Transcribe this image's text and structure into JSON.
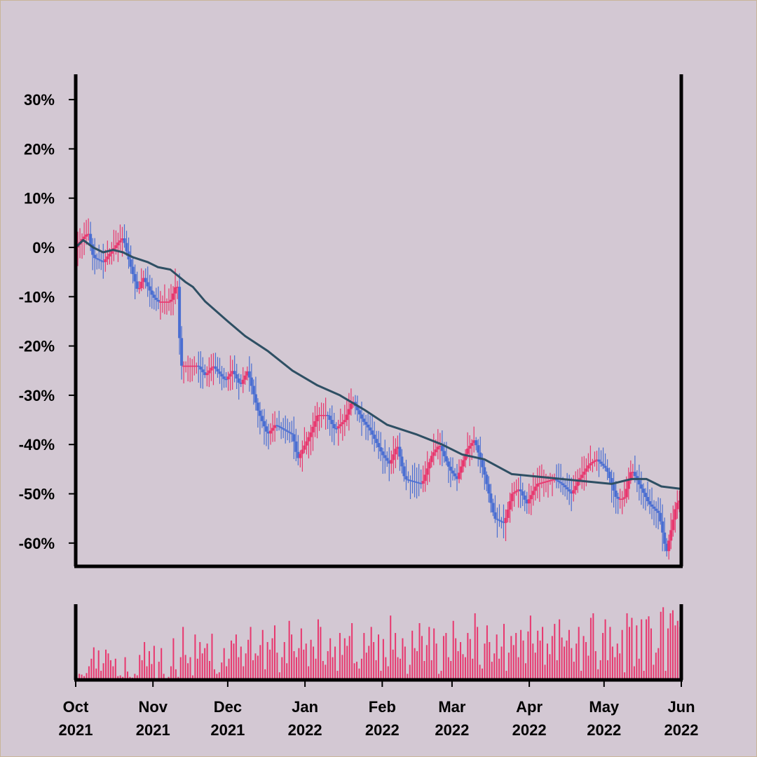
{
  "chart_data": [
    {
      "type": "ohlc",
      "title": "",
      "xlabel": "",
      "ylabel": "",
      "ylim": [
        -66,
        36
      ],
      "y_ticks": [
        30,
        20,
        10,
        0,
        -10,
        -20,
        -30,
        -40,
        -50,
        -60
      ],
      "y_tick_labels": [
        "30%",
        "20%",
        "10%",
        "0%",
        "-10%",
        "-20%",
        "-30%",
        "-40%",
        "-50%",
        "-60%"
      ],
      "x_range": [
        "2021-10-01",
        "2022-06-01"
      ],
      "x_ticks": [
        "2021-10-01",
        "2021-11-01",
        "2021-12-01",
        "2022-01-01",
        "2022-02-01",
        "2022-03-01",
        "2022-04-01",
        "2022-05-01",
        "2022-06-01"
      ],
      "x_tick_labels": [
        [
          "Oct",
          "2021"
        ],
        [
          "Nov",
          "2021"
        ],
        [
          "Dec",
          "2021"
        ],
        [
          "Jan",
          "2022"
        ],
        [
          "Feb",
          "2022"
        ],
        [
          "Mar",
          "2022"
        ],
        [
          "Apr",
          "2022"
        ],
        [
          "May",
          "2022"
        ],
        [
          "Jun",
          "2022"
        ]
      ],
      "grid": false,
      "series": [
        {
          "kind": "price_path",
          "unit": "% change",
          "points": [
            [
              "2021-10-01",
              0
            ],
            [
              "2021-10-04",
              2
            ],
            [
              "2021-10-06",
              3
            ],
            [
              "2021-10-08",
              -2
            ],
            [
              "2021-10-12",
              -3
            ],
            [
              "2021-10-15",
              -1
            ],
            [
              "2021-10-18",
              1
            ],
            [
              "2021-10-20",
              2
            ],
            [
              "2021-10-22",
              -2
            ],
            [
              "2021-10-26",
              -9
            ],
            [
              "2021-10-28",
              -6
            ],
            [
              "2021-11-01",
              -10
            ],
            [
              "2021-11-03",
              -11
            ],
            [
              "2021-11-08",
              -11
            ],
            [
              "2021-11-10",
              -8
            ],
            [
              "2021-11-11",
              -8
            ],
            [
              "2021-11-12",
              -24
            ],
            [
              "2021-11-19",
              -24
            ],
            [
              "2021-11-22",
              -26
            ],
            [
              "2021-11-25",
              -24
            ],
            [
              "2021-11-30",
              -27
            ],
            [
              "2021-12-03",
              -25
            ],
            [
              "2021-12-06",
              -28
            ],
            [
              "2021-12-09",
              -25
            ],
            [
              "2021-12-13",
              -33
            ],
            [
              "2021-12-17",
              -38
            ],
            [
              "2021-12-20",
              -36
            ],
            [
              "2021-12-27",
              -38
            ],
            [
              "2021-12-29",
              -43
            ],
            [
              "2022-01-03",
              -38
            ],
            [
              "2022-01-06",
              -34
            ],
            [
              "2022-01-10",
              -34
            ],
            [
              "2022-01-13",
              -37
            ],
            [
              "2022-01-17",
              -35
            ],
            [
              "2022-01-20",
              -31
            ],
            [
              "2022-01-24",
              -35
            ],
            [
              "2022-01-27",
              -37
            ],
            [
              "2022-02-01",
              -42
            ],
            [
              "2022-02-04",
              -44
            ],
            [
              "2022-02-07",
              -40
            ],
            [
              "2022-02-10",
              -47
            ],
            [
              "2022-02-17",
              -48
            ],
            [
              "2022-02-21",
              -42
            ],
            [
              "2022-02-24",
              -40
            ],
            [
              "2022-02-28",
              -45
            ],
            [
              "2022-03-03",
              -47
            ],
            [
              "2022-03-07",
              -41
            ],
            [
              "2022-03-10",
              -39
            ],
            [
              "2022-03-14",
              -46
            ],
            [
              "2022-03-18",
              -55
            ],
            [
              "2022-03-22",
              -56
            ],
            [
              "2022-03-25",
              -50
            ],
            [
              "2022-03-28",
              -49
            ],
            [
              "2022-03-31",
              -52
            ],
            [
              "2022-04-04",
              -48
            ],
            [
              "2022-04-11",
              -47
            ],
            [
              "2022-04-14",
              -48
            ],
            [
              "2022-04-18",
              -50
            ],
            [
              "2022-04-21",
              -47
            ],
            [
              "2022-04-25",
              -44
            ],
            [
              "2022-04-28",
              -43
            ],
            [
              "2022-05-02",
              -45
            ],
            [
              "2022-05-06",
              -51
            ],
            [
              "2022-05-09",
              -51
            ],
            [
              "2022-05-12",
              -45
            ],
            [
              "2022-05-16",
              -49
            ],
            [
              "2022-05-19",
              -52
            ],
            [
              "2022-05-23",
              -54
            ],
            [
              "2022-05-26",
              -62
            ],
            [
              "2022-05-30",
              -52
            ],
            [
              "2022-06-01",
              -51
            ]
          ]
        },
        {
          "kind": "moving_average",
          "color": "#2e4f63",
          "points": [
            [
              "2021-10-01",
              0
            ],
            [
              "2021-10-04",
              1.5
            ],
            [
              "2021-10-08",
              0
            ],
            [
              "2021-10-12",
              -1
            ],
            [
              "2021-10-16",
              -0.5
            ],
            [
              "2021-10-20",
              -1
            ],
            [
              "2021-10-24",
              -2
            ],
            [
              "2021-10-30",
              -3
            ],
            [
              "2021-11-03",
              -4
            ],
            [
              "2021-11-08",
              -4.5
            ],
            [
              "2021-11-14",
              -7
            ],
            [
              "2021-11-17",
              -8
            ],
            [
              "2021-11-22",
              -11
            ],
            [
              "2021-12-01",
              -15
            ],
            [
              "2021-12-08",
              -18
            ],
            [
              "2021-12-17",
              -21
            ],
            [
              "2021-12-27",
              -25
            ],
            [
              "2022-01-06",
              -28
            ],
            [
              "2022-01-15",
              -30
            ],
            [
              "2022-01-25",
              -33
            ],
            [
              "2022-02-03",
              -36
            ],
            [
              "2022-02-15",
              -38
            ],
            [
              "2022-02-25",
              -40
            ],
            [
              "2022-03-05",
              -42
            ],
            [
              "2022-03-14",
              -43
            ],
            [
              "2022-03-25",
              -46
            ],
            [
              "2022-04-04",
              -46.5
            ],
            [
              "2022-04-14",
              -47
            ],
            [
              "2022-04-24",
              -47.5
            ],
            [
              "2022-05-04",
              -48
            ],
            [
              "2022-05-12",
              -47
            ],
            [
              "2022-05-18",
              -47
            ],
            [
              "2022-05-24",
              -48.5
            ],
            [
              "2022-06-01",
              -49
            ]
          ]
        }
      ],
      "colors": {
        "up": "#e8376e",
        "down": "#4a6ed2",
        "moving_average": "#2e4f63",
        "axis": "#000000",
        "background": "#d3c8d3"
      }
    },
    {
      "type": "bar",
      "title": "",
      "series_name": "",
      "description_scale": "volume (relative units, no axis labels shown)",
      "ylim": [
        0,
        100
      ],
      "color": "#e8376e",
      "x_range": [
        "2021-10-01",
        "2022-06-01"
      ],
      "values": [
        3,
        8,
        7,
        5,
        9,
        18,
        28,
        43,
        15,
        39,
        12,
        22,
        40,
        35,
        26,
        18,
        28,
        5,
        6,
        4,
        30,
        11,
        4,
        3,
        8,
        6,
        33,
        26,
        50,
        18,
        38,
        21,
        45,
        2,
        24,
        42,
        8,
        2,
        4,
        18,
        55,
        14,
        4,
        30,
        70,
        33,
        22,
        30,
        6,
        60,
        28,
        50,
        35,
        42,
        48,
        25,
        61,
        14,
        8,
        10,
        23,
        42,
        18,
        28,
        52,
        48,
        60,
        30,
        44,
        18,
        35,
        53,
        70,
        26,
        35,
        32,
        46,
        66,
        14,
        50,
        40,
        55,
        72,
        36,
        10,
        30,
        50,
        22,
        78,
        60,
        38,
        30,
        42,
        68,
        40,
        48,
        18,
        53,
        44,
        28,
        80,
        70,
        25,
        20,
        38,
        55,
        30,
        44,
        12,
        62,
        33,
        55,
        45,
        58,
        75,
        22,
        24,
        15,
        28,
        62,
        36,
        45,
        70,
        50,
        26,
        60,
        12,
        54,
        30,
        18,
        85,
        40,
        62,
        30,
        28,
        55,
        44,
        8,
        20,
        65,
        42,
        38,
        75,
        58,
        25,
        46,
        70,
        26,
        68,
        48,
        8,
        12,
        58,
        62,
        30,
        25,
        78,
        55,
        38,
        50,
        34,
        30,
        62,
        54,
        28,
        88,
        70,
        20,
        15,
        48,
        72,
        50,
        24,
        35,
        60,
        28,
        44,
        74,
        12,
        36,
        58,
        46,
        62,
        30,
        66,
        52,
        22,
        64,
        85,
        48,
        36,
        65,
        52,
        70,
        20,
        48,
        34,
        58,
        74,
        26,
        80,
        56,
        44,
        52,
        66,
        42,
        24,
        48,
        70,
        12,
        58,
        50,
        32,
        82,
        88,
        38,
        14,
        26,
        62,
        80,
        26,
        70,
        44,
        30,
        48,
        35,
        66,
        10,
        88,
        70,
        82,
        18,
        72,
        28,
        80,
        12,
        80,
        84,
        68,
        20,
        36,
        42,
        90,
        96,
        12,
        68,
        88,
        92,
        72,
        78,
        70
      ]
    }
  ]
}
